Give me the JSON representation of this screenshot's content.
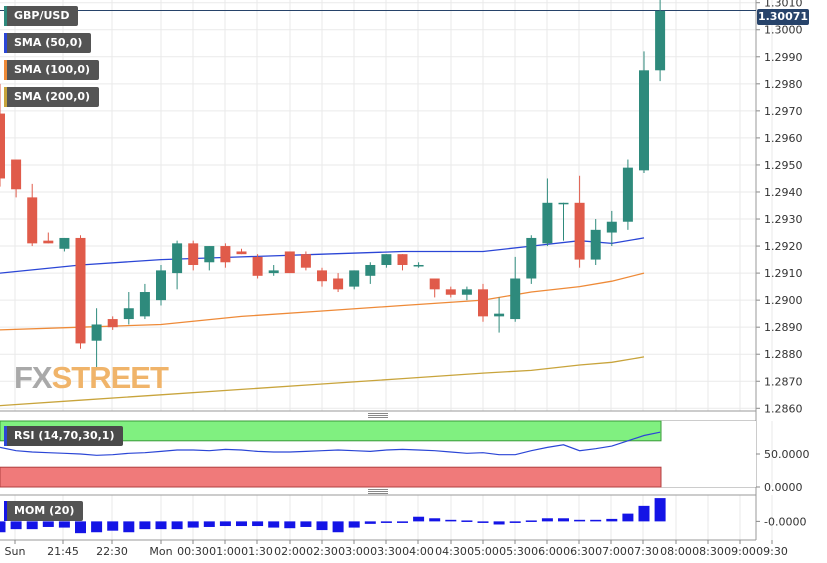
{
  "legends": {
    "pair": "GBP/USD",
    "sma50": "SMA (50,0)",
    "sma100": "SMA (100,0)",
    "sma200": "SMA (200,0)",
    "rsi": "RSI (14,70,30,1)",
    "mom": "MOM (20)"
  },
  "current_price": "1.30071",
  "logo": {
    "part1": "FX",
    "part2": "STREET"
  },
  "colors": {
    "bull": "#2e8a7c",
    "bear": "#e05b4a",
    "sma50": "#2b46d6",
    "sma100": "#ee8a38",
    "sma200": "#c8a43c",
    "rsi_line": "#2b46d6",
    "rsi_overbought": "#80f080",
    "rsi_oversold": "#f07a7a",
    "mom_bar": "#1414e6",
    "price_line": "#27436a"
  },
  "chart_data": [
    {
      "type": "candlestick",
      "title": "GBP/USD",
      "x_labels": [
        "Sun",
        "21:45",
        "22:30",
        "Mon",
        "00:30",
        "01:00",
        "01:30",
        "02:00",
        "02:30",
        "03:00",
        "03:30",
        "04:00",
        "04:30",
        "05:00",
        "05:30",
        "06:00",
        "06:30",
        "07:00",
        "07:30",
        "08:00",
        "08:30",
        "09:00",
        "09:30"
      ],
      "y_ticks": [
        "1.2860",
        "1.2870",
        "1.2880",
        "1.2890",
        "1.2900",
        "1.2910",
        "1.2920",
        "1.2930",
        "1.2940",
        "1.2950",
        "1.2960",
        "1.2970",
        "1.2980",
        "1.2990",
        "1.3000",
        "1.3010"
      ],
      "ylim": [
        1.2859,
        1.3011
      ],
      "candles": [
        {
          "o": 1.2969,
          "h": 1.298,
          "l": 1.2942,
          "c": 1.2945
        },
        {
          "o": 1.2952,
          "h": 1.2952,
          "l": 1.2938,
          "c": 1.2941
        },
        {
          "o": 1.2938,
          "h": 1.2943,
          "l": 1.292,
          "c": 1.2921
        },
        {
          "o": 1.2922,
          "h": 1.2925,
          "l": 1.2921,
          "c": 1.2921
        },
        {
          "o": 1.2919,
          "h": 1.2923,
          "l": 1.2918,
          "c": 1.2923
        },
        {
          "o": 1.2923,
          "h": 1.2924,
          "l": 1.2882,
          "c": 1.2884
        },
        {
          "o": 1.2885,
          "h": 1.2897,
          "l": 1.2874,
          "c": 1.2891
        },
        {
          "o": 1.2893,
          "h": 1.2894,
          "l": 1.2889,
          "c": 1.289
        },
        {
          "o": 1.2893,
          "h": 1.2903,
          "l": 1.2891,
          "c": 1.2897
        },
        {
          "o": 1.2894,
          "h": 1.2906,
          "l": 1.2893,
          "c": 1.2903
        },
        {
          "o": 1.29,
          "h": 1.2913,
          "l": 1.2898,
          "c": 1.2911
        },
        {
          "o": 1.291,
          "h": 1.2922,
          "l": 1.2904,
          "c": 1.2921
        },
        {
          "o": 1.2921,
          "h": 1.2922,
          "l": 1.2911,
          "c": 1.2913
        },
        {
          "o": 1.2914,
          "h": 1.292,
          "l": 1.2911,
          "c": 1.292
        },
        {
          "o": 1.292,
          "h": 1.2921,
          "l": 1.2912,
          "c": 1.2914
        },
        {
          "o": 1.2918,
          "h": 1.2919,
          "l": 1.2917,
          "c": 1.2917
        },
        {
          "o": 1.2916,
          "h": 1.2917,
          "l": 1.2908,
          "c": 1.2909
        },
        {
          "o": 1.291,
          "h": 1.2913,
          "l": 1.2909,
          "c": 1.2911
        },
        {
          "o": 1.2918,
          "h": 1.2918,
          "l": 1.291,
          "c": 1.291
        },
        {
          "o": 1.2917,
          "h": 1.2918,
          "l": 1.2911,
          "c": 1.2912
        },
        {
          "o": 1.2911,
          "h": 1.2912,
          "l": 1.2905,
          "c": 1.2907
        },
        {
          "o": 1.2908,
          "h": 1.291,
          "l": 1.2903,
          "c": 1.2904
        },
        {
          "o": 1.2905,
          "h": 1.2911,
          "l": 1.2904,
          "c": 1.2911
        },
        {
          "o": 1.2909,
          "h": 1.2914,
          "l": 1.2906,
          "c": 1.2913
        },
        {
          "o": 1.2913,
          "h": 1.2917,
          "l": 1.2912,
          "c": 1.2917
        },
        {
          "o": 1.2917,
          "h": 1.2917,
          "l": 1.2911,
          "c": 1.2913
        },
        {
          "o": 1.2913,
          "h": 1.2914,
          "l": 1.2912,
          "c": 1.2913
        },
        {
          "o": 1.2908,
          "h": 1.2908,
          "l": 1.2901,
          "c": 1.2904
        },
        {
          "o": 1.2904,
          "h": 1.2905,
          "l": 1.2901,
          "c": 1.2902
        },
        {
          "o": 1.2902,
          "h": 1.2905,
          "l": 1.29,
          "c": 1.2904
        },
        {
          "o": 1.2904,
          "h": 1.2906,
          "l": 1.2892,
          "c": 1.2894
        },
        {
          "o": 1.2894,
          "h": 1.2901,
          "l": 1.2888,
          "c": 1.2895
        },
        {
          "o": 1.2893,
          "h": 1.2916,
          "l": 1.2892,
          "c": 1.2908
        },
        {
          "o": 1.2908,
          "h": 1.2924,
          "l": 1.2906,
          "c": 1.2923
        },
        {
          "o": 1.2921,
          "h": 1.2945,
          "l": 1.292,
          "c": 1.2936
        },
        {
          "o": 1.2936,
          "h": 1.2936,
          "l": 1.2922,
          "c": 1.2936
        },
        {
          "o": 1.2936,
          "h": 1.2946,
          "l": 1.2912,
          "c": 1.2915
        },
        {
          "o": 1.2915,
          "h": 1.293,
          "l": 1.2913,
          "c": 1.2926
        },
        {
          "o": 1.2925,
          "h": 1.2933,
          "l": 1.292,
          "c": 1.2929
        },
        {
          "o": 1.2929,
          "h": 1.2952,
          "l": 1.2926,
          "c": 1.2949
        },
        {
          "o": 1.2948,
          "h": 1.2992,
          "l": 1.2947,
          "c": 1.2985
        },
        {
          "o": 1.2985,
          "h": 1.3013,
          "l": 1.2981,
          "c": 1.3007
        }
      ]
    },
    {
      "type": "line",
      "title": "SMA (50,0)",
      "series": [
        {
          "name": "SMA (50,0)",
          "x": [
            0,
            5,
            10,
            15,
            20,
            25,
            30,
            33,
            36,
            38,
            40
          ],
          "values": [
            1.291,
            1.2913,
            1.2915,
            1.2916,
            1.2917,
            1.2918,
            1.2918,
            1.292,
            1.2922,
            1.2921,
            1.2923
          ]
        },
        {
          "name": "SMA (100,0)",
          "x": [
            0,
            5,
            10,
            15,
            20,
            25,
            30,
            33,
            36,
            38,
            40
          ],
          "values": [
            1.2889,
            1.289,
            1.2891,
            1.2894,
            1.2896,
            1.2898,
            1.29,
            1.2903,
            1.2905,
            1.2907,
            1.291
          ]
        },
        {
          "name": "SMA (200,0)",
          "x": [
            0,
            5,
            10,
            15,
            20,
            25,
            30,
            33,
            36,
            38,
            40
          ],
          "values": [
            1.2861,
            1.2863,
            1.2865,
            1.2867,
            1.2869,
            1.2871,
            1.2873,
            1.2874,
            1.2876,
            1.2877,
            1.2879
          ]
        }
      ]
    },
    {
      "type": "line",
      "title": "RSI (14,70,30,1)",
      "y_ticks": [
        "50.0000",
        "0.0000"
      ],
      "ylim": [
        0,
        100
      ],
      "zones": {
        "overbought": [
          70,
          100
        ],
        "oversold": [
          0,
          30
        ]
      },
      "values": [
        60,
        55,
        53,
        52,
        51,
        50,
        48,
        49,
        51,
        52,
        54,
        56,
        56,
        55,
        57,
        56,
        54,
        53,
        53,
        54,
        55,
        56,
        55,
        54,
        56,
        57,
        56,
        55,
        53,
        51,
        52,
        49,
        49,
        55,
        60,
        64,
        55,
        58,
        62,
        70,
        78,
        83
      ]
    },
    {
      "type": "bar",
      "title": "MOM (20)",
      "y_ticks": [
        "-0.0000"
      ],
      "ylim": [
        -0.006,
        0.0085
      ],
      "values": [
        -0.0035,
        -0.0025,
        -0.0025,
        -0.0018,
        -0.002,
        -0.0038,
        -0.0035,
        -0.003,
        -0.0035,
        -0.0025,
        -0.0025,
        -0.0025,
        -0.002,
        -0.0018,
        -0.0015,
        -0.0015,
        -0.0015,
        -0.002,
        -0.0022,
        -0.0018,
        -0.0028,
        -0.0035,
        -0.002,
        -0.0008,
        -0.0005,
        -0.0005,
        0.0015,
        0.001,
        0.0005,
        0.0003,
        -0.0005,
        -0.001,
        -0.0005,
        0.0003,
        0.001,
        0.001,
        0.0005,
        0.0005,
        0.0008,
        0.0025,
        0.005,
        0.0075
      ]
    }
  ]
}
